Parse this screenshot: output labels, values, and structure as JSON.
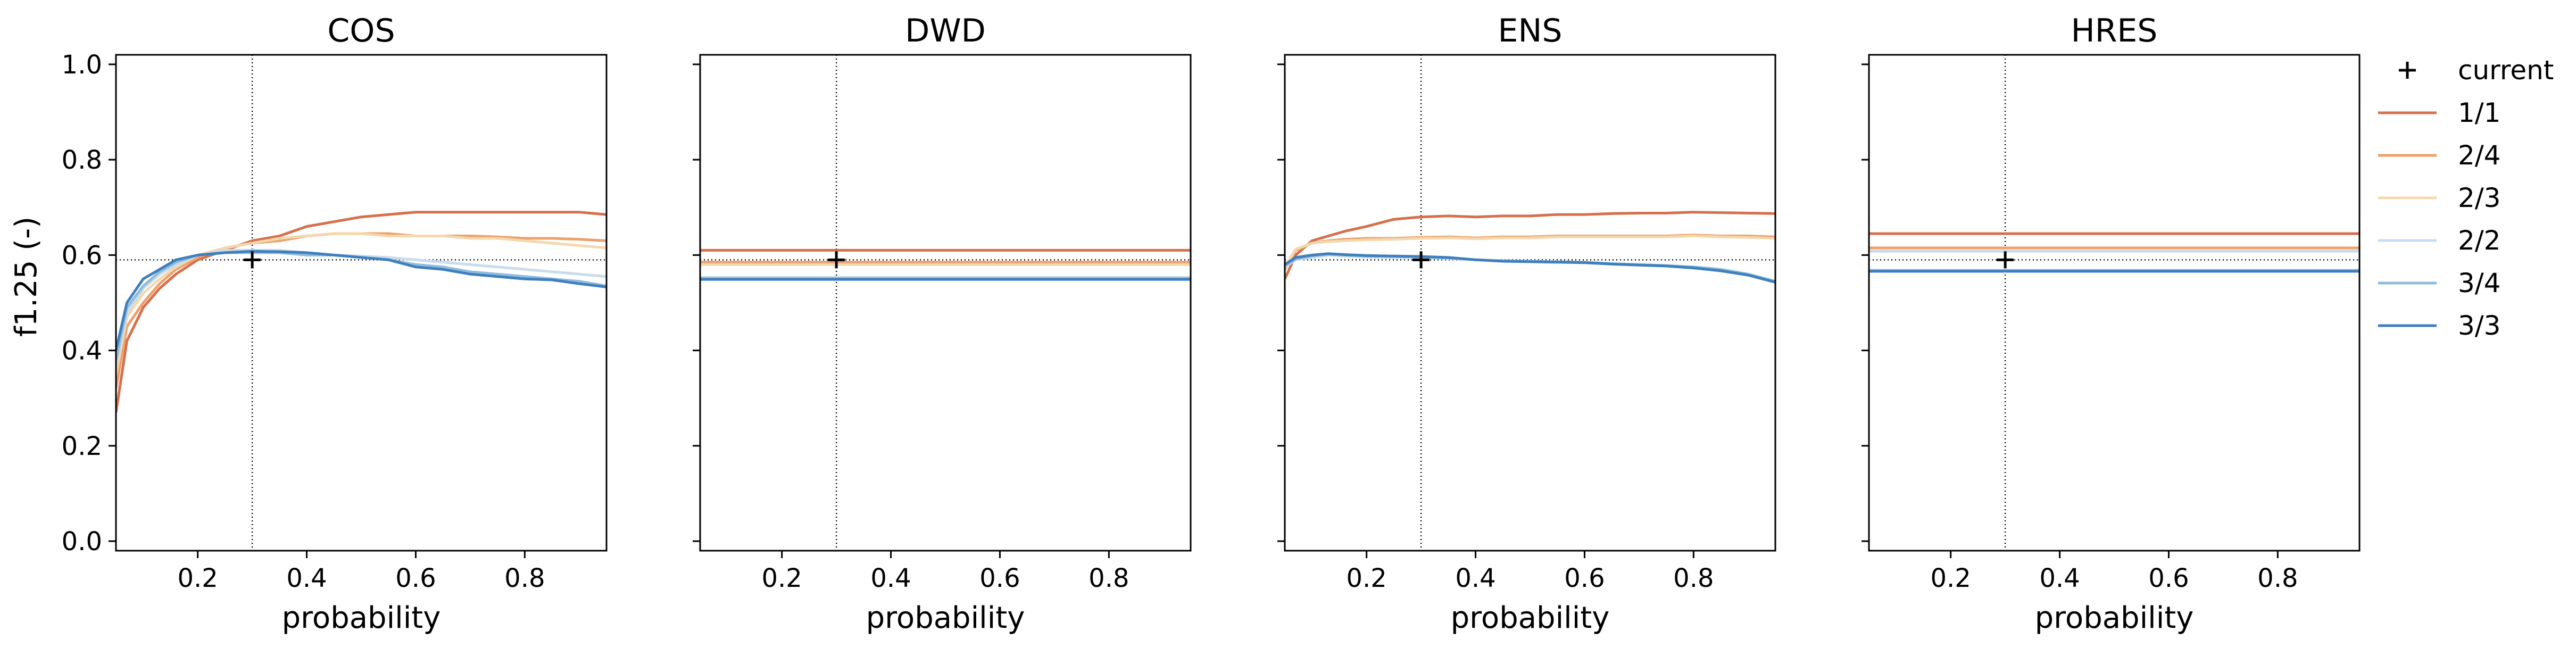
{
  "chart_data": {
    "type": "line",
    "ylabel": "f1.25 (-)",
    "xlabel": "probability",
    "xlim": [
      0.05,
      0.95
    ],
    "ylim": [
      -0.02,
      1.02
    ],
    "x_ticks": [
      "0.2",
      "0.4",
      "0.6",
      "0.8"
    ],
    "y_ticks": [
      "0.0",
      "0.2",
      "0.4",
      "0.6",
      "0.8",
      "1.0"
    ],
    "current": {
      "x": 0.3,
      "y": 0.59
    },
    "legend": {
      "placement": "outside-right",
      "entries": [
        {
          "label": "current",
          "marker": "+",
          "color": "#000000"
        },
        {
          "label": "1/1",
          "color": "#d6704c"
        },
        {
          "label": "2/4",
          "color": "#eea06c"
        },
        {
          "label": "2/3",
          "color": "#f4d8ad"
        },
        {
          "label": "2/2",
          "color": "#c9dceb"
        },
        {
          "label": "3/4",
          "color": "#8dbcdc"
        },
        {
          "label": "3/3",
          "color": "#3f7fbf"
        }
      ]
    },
    "panels": [
      {
        "title": "COS",
        "show_yticklabels": true,
        "series": [
          {
            "name": "1/1",
            "x": [
              0.05,
              0.07,
              0.1,
              0.13,
              0.16,
              0.2,
              0.25,
              0.3,
              0.35,
              0.4,
              0.45,
              0.5,
              0.55,
              0.6,
              0.65,
              0.7,
              0.75,
              0.8,
              0.85,
              0.9,
              0.95
            ],
            "y": [
              0.27,
              0.42,
              0.49,
              0.53,
              0.56,
              0.59,
              0.61,
              0.63,
              0.64,
              0.66,
              0.67,
              0.68,
              0.685,
              0.69,
              0.69,
              0.69,
              0.69,
              0.69,
              0.69,
              0.69,
              0.685
            ]
          },
          {
            "name": "2/4",
            "x": [
              0.05,
              0.07,
              0.1,
              0.13,
              0.16,
              0.2,
              0.25,
              0.3,
              0.35,
              0.4,
              0.45,
              0.5,
              0.55,
              0.6,
              0.65,
              0.7,
              0.75,
              0.8,
              0.85,
              0.9,
              0.95
            ],
            "y": [
              0.32,
              0.45,
              0.5,
              0.54,
              0.57,
              0.595,
              0.615,
              0.625,
              0.63,
              0.64,
              0.645,
              0.645,
              0.645,
              0.64,
              0.64,
              0.64,
              0.638,
              0.635,
              0.635,
              0.633,
              0.63
            ]
          },
          {
            "name": "2/3",
            "x": [
              0.05,
              0.07,
              0.1,
              0.13,
              0.16,
              0.2,
              0.25,
              0.3,
              0.35,
              0.4,
              0.45,
              0.5,
              0.55,
              0.6,
              0.65,
              0.7,
              0.75,
              0.8,
              0.85,
              0.9,
              0.95
            ],
            "y": [
              0.35,
              0.47,
              0.52,
              0.55,
              0.575,
              0.6,
              0.615,
              0.625,
              0.635,
              0.64,
              0.645,
              0.645,
              0.64,
              0.64,
              0.64,
              0.635,
              0.635,
              0.63,
              0.625,
              0.62,
              0.615
            ]
          },
          {
            "name": "2/2",
            "x": [
              0.05,
              0.07,
              0.1,
              0.13,
              0.16,
              0.2,
              0.25,
              0.3,
              0.35,
              0.4,
              0.45,
              0.5,
              0.55,
              0.6,
              0.65,
              0.7,
              0.75,
              0.8,
              0.85,
              0.9,
              0.95
            ],
            "y": [
              0.37,
              0.48,
              0.53,
              0.56,
              0.58,
              0.6,
              0.61,
              0.61,
              0.61,
              0.605,
              0.6,
              0.598,
              0.595,
              0.59,
              0.585,
              0.58,
              0.575,
              0.57,
              0.565,
              0.56,
              0.555
            ]
          },
          {
            "name": "3/4",
            "x": [
              0.05,
              0.07,
              0.1,
              0.13,
              0.16,
              0.2,
              0.25,
              0.3,
              0.35,
              0.4,
              0.45,
              0.5,
              0.55,
              0.6,
              0.65,
              0.7,
              0.75,
              0.8,
              0.85,
              0.9,
              0.95
            ],
            "y": [
              0.38,
              0.49,
              0.535,
              0.565,
              0.585,
              0.6,
              0.605,
              0.605,
              0.605,
              0.6,
              0.6,
              0.595,
              0.59,
              0.58,
              0.575,
              0.565,
              0.56,
              0.555,
              0.55,
              0.545,
              0.535
            ]
          },
          {
            "name": "3/3",
            "x": [
              0.05,
              0.07,
              0.1,
              0.13,
              0.16,
              0.2,
              0.25,
              0.3,
              0.35,
              0.4,
              0.45,
              0.5,
              0.55,
              0.6,
              0.65,
              0.7,
              0.75,
              0.8,
              0.85,
              0.9,
              0.95
            ],
            "y": [
              0.4,
              0.5,
              0.55,
              0.57,
              0.59,
              0.6,
              0.605,
              0.608,
              0.607,
              0.605,
              0.6,
              0.595,
              0.59,
              0.575,
              0.57,
              0.56,
              0.555,
              0.55,
              0.548,
              0.54,
              0.533
            ]
          }
        ]
      },
      {
        "title": "DWD",
        "show_yticklabels": false,
        "series": [
          {
            "name": "1/1",
            "x": [
              0.05,
              0.95
            ],
            "y": [
              0.61,
              0.61
            ]
          },
          {
            "name": "2/4",
            "x": [
              0.05,
              0.95
            ],
            "y": [
              0.585,
              0.585
            ]
          },
          {
            "name": "2/3",
            "x": [
              0.05,
              0.95
            ],
            "y": [
              0.58,
              0.58
            ]
          },
          {
            "name": "2/2",
            "x": [
              0.05,
              0.95
            ],
            "y": [
              0.553,
              0.553
            ]
          },
          {
            "name": "3/4",
            "x": [
              0.05,
              0.95
            ],
            "y": [
              0.551,
              0.551
            ]
          },
          {
            "name": "3/3",
            "x": [
              0.05,
              0.95
            ],
            "y": [
              0.549,
              0.549
            ]
          }
        ]
      },
      {
        "title": "ENS",
        "show_yticklabels": false,
        "series": [
          {
            "name": "1/1",
            "x": [
              0.05,
              0.07,
              0.1,
              0.13,
              0.16,
              0.2,
              0.25,
              0.3,
              0.35,
              0.4,
              0.45,
              0.5,
              0.55,
              0.6,
              0.65,
              0.7,
              0.75,
              0.8,
              0.85,
              0.9,
              0.95
            ],
            "y": [
              0.55,
              0.6,
              0.63,
              0.64,
              0.65,
              0.66,
              0.675,
              0.68,
              0.682,
              0.68,
              0.682,
              0.682,
              0.685,
              0.685,
              0.687,
              0.688,
              0.688,
              0.69,
              0.689,
              0.688,
              0.687
            ]
          },
          {
            "name": "2/4",
            "x": [
              0.05,
              0.07,
              0.1,
              0.13,
              0.16,
              0.2,
              0.25,
              0.3,
              0.35,
              0.4,
              0.45,
              0.5,
              0.55,
              0.6,
              0.65,
              0.7,
              0.75,
              0.8,
              0.85,
              0.9,
              0.95
            ],
            "y": [
              0.57,
              0.61,
              0.625,
              0.63,
              0.633,
              0.635,
              0.635,
              0.637,
              0.638,
              0.636,
              0.638,
              0.638,
              0.64,
              0.64,
              0.64,
              0.64,
              0.64,
              0.642,
              0.64,
              0.64,
              0.638
            ]
          },
          {
            "name": "2/3",
            "x": [
              0.05,
              0.07,
              0.1,
              0.13,
              0.16,
              0.2,
              0.25,
              0.3,
              0.35,
              0.4,
              0.45,
              0.5,
              0.55,
              0.6,
              0.65,
              0.7,
              0.75,
              0.8,
              0.85,
              0.9,
              0.95
            ],
            "y": [
              0.575,
              0.612,
              0.625,
              0.628,
              0.63,
              0.632,
              0.633,
              0.635,
              0.636,
              0.634,
              0.636,
              0.636,
              0.638,
              0.638,
              0.638,
              0.638,
              0.638,
              0.64,
              0.638,
              0.637,
              0.635
            ]
          },
          {
            "name": "2/2",
            "x": [
              0.05,
              0.07,
              0.1,
              0.13,
              0.16,
              0.2,
              0.25,
              0.3,
              0.35,
              0.4,
              0.45,
              0.5,
              0.55,
              0.6,
              0.65,
              0.7,
              0.75,
              0.8,
              0.85,
              0.9,
              0.95
            ],
            "y": [
              0.575,
              0.59,
              0.595,
              0.6,
              0.598,
              0.596,
              0.595,
              0.595,
              0.593,
              0.59,
              0.588,
              0.587,
              0.586,
              0.585,
              0.582,
              0.58,
              0.578,
              0.575,
              0.57,
              0.56,
              0.545
            ]
          },
          {
            "name": "3/4",
            "x": [
              0.05,
              0.07,
              0.1,
              0.13,
              0.16,
              0.2,
              0.25,
              0.3,
              0.35,
              0.4,
              0.45,
              0.5,
              0.55,
              0.6,
              0.65,
              0.7,
              0.75,
              0.8,
              0.85,
              0.9,
              0.95
            ],
            "y": [
              0.578,
              0.592,
              0.598,
              0.602,
              0.6,
              0.598,
              0.597,
              0.596,
              0.594,
              0.59,
              0.588,
              0.587,
              0.586,
              0.585,
              0.582,
              0.58,
              0.578,
              0.575,
              0.57,
              0.56,
              0.545
            ]
          },
          {
            "name": "3/3",
            "x": [
              0.05,
              0.07,
              0.1,
              0.13,
              0.16,
              0.2,
              0.25,
              0.3,
              0.35,
              0.4,
              0.45,
              0.5,
              0.55,
              0.6,
              0.65,
              0.7,
              0.75,
              0.8,
              0.85,
              0.9,
              0.95
            ],
            "y": [
              0.58,
              0.595,
              0.6,
              0.603,
              0.601,
              0.599,
              0.598,
              0.597,
              0.595,
              0.59,
              0.587,
              0.586,
              0.585,
              0.584,
              0.581,
              0.579,
              0.577,
              0.573,
              0.567,
              0.558,
              0.543
            ]
          }
        ]
      },
      {
        "title": "HRES",
        "show_yticklabels": false,
        "series": [
          {
            "name": "1/1",
            "x": [
              0.05,
              0.95
            ],
            "y": [
              0.645,
              0.645
            ]
          },
          {
            "name": "2/4",
            "x": [
              0.05,
              0.95
            ],
            "y": [
              0.615,
              0.615
            ]
          },
          {
            "name": "2/3",
            "x": [
              0.05,
              0.95
            ],
            "y": [
              0.61,
              0.61
            ]
          },
          {
            "name": "2/2",
            "x": [
              0.05,
              0.95
            ],
            "y": [
              0.608,
              0.608
            ]
          },
          {
            "name": "3/4",
            "x": [
              0.05,
              0.95
            ],
            "y": [
              0.568,
              0.568
            ]
          },
          {
            "name": "3/3",
            "x": [
              0.05,
              0.95
            ],
            "y": [
              0.566,
              0.566
            ]
          }
        ]
      }
    ]
  }
}
